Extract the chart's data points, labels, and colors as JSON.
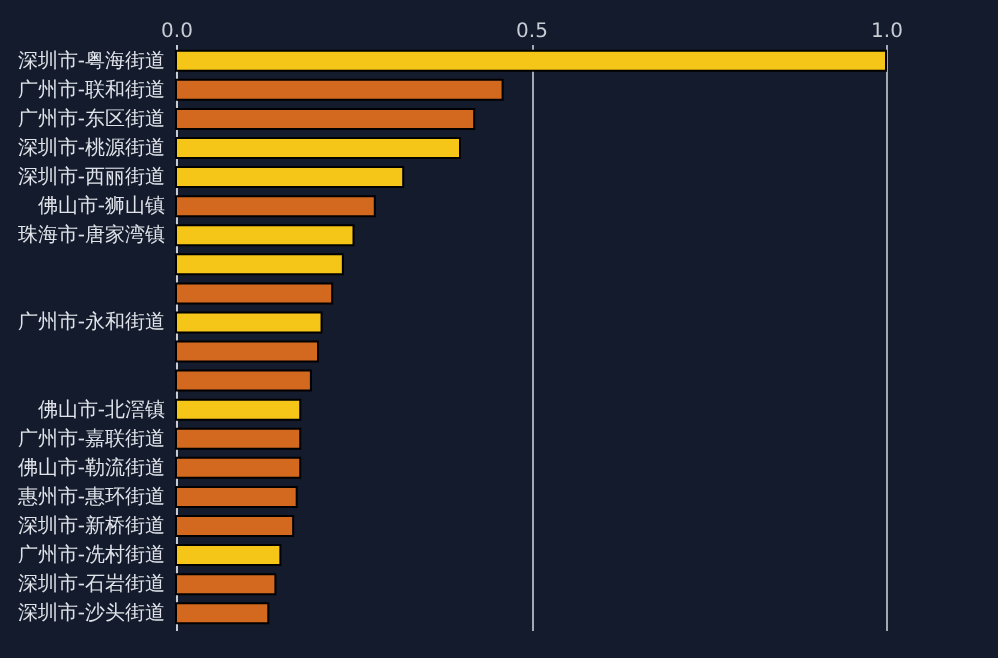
{
  "chart_data": {
    "type": "bar",
    "orientation": "horizontal",
    "categories": [
      "深圳市-粤海街道",
      "广州市-联和街道",
      "广州市-东区街道",
      "深圳市-桃源街道",
      "深圳市-西丽街道",
      "佛山市-狮山镇",
      "珠海市-唐家湾镇",
      null,
      null,
      "广州市-永和街道",
      null,
      null,
      "佛山市-北滘镇",
      "广州市-嘉联街道",
      "佛山市-勒流街道",
      "惠州市-惠环街道",
      "深圳市-新桥街道",
      "广州市-冼村街道",
      "深圳市-石岩街道",
      "深圳市-沙头街道"
    ],
    "values": [
      1.0,
      0.46,
      0.42,
      0.4,
      0.32,
      0.28,
      0.25,
      0.235,
      0.22,
      0.205,
      0.2,
      0.19,
      0.175,
      0.175,
      0.175,
      0.17,
      0.165,
      0.147,
      0.14,
      0.13
    ],
    "colors": [
      "#f5c518",
      "#d2691e",
      "#d2691e",
      "#f5c518",
      "#f5c518",
      "#d2691e",
      "#f5c518",
      "#f5c518",
      "#d2691e",
      "#f5c518",
      "#d2691e",
      "#d2691e",
      "#f5c518",
      "#d2691e",
      "#d2691e",
      "#d2691e",
      "#d2691e",
      "#f5c518",
      "#d2691e",
      "#d2691e"
    ],
    "xlim": [
      0,
      1.0
    ],
    "xticks": [
      {
        "value": 0,
        "label": "0.0"
      },
      {
        "value": 0.5,
        "label": "0.5"
      },
      {
        "value": 1,
        "label": "1.0"
      }
    ],
    "grid": "x"
  }
}
